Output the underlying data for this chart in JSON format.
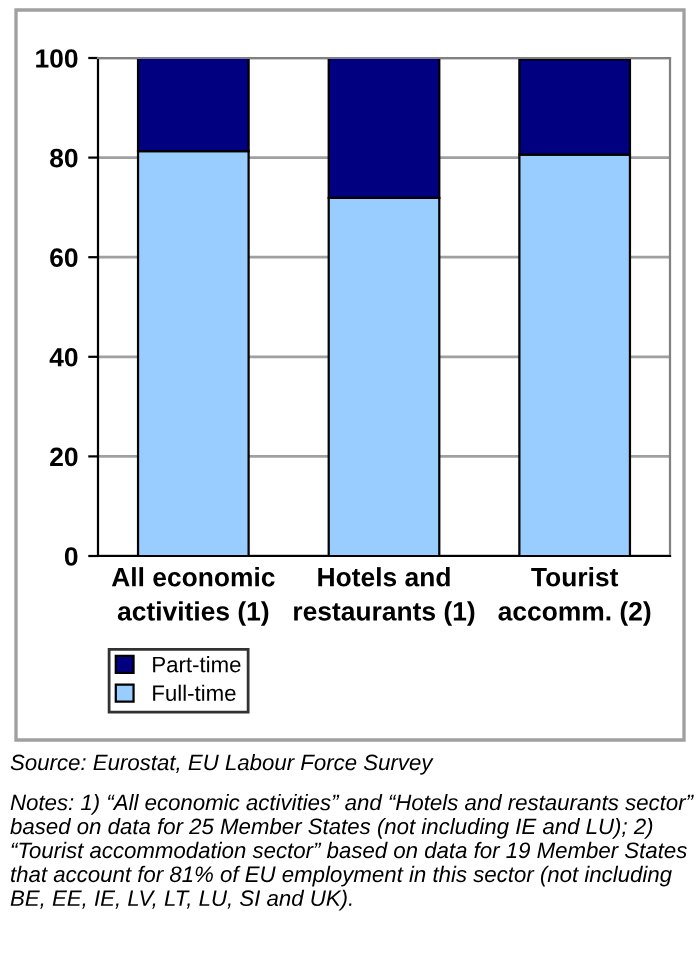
{
  "chart_data": {
    "type": "bar",
    "stacked": true,
    "categories": [
      "All economic\nactivities (1)",
      "Hotels and\nrestaurants (1)",
      "Tourist\naccomm. (2)"
    ],
    "series": [
      {
        "name": "Full-time",
        "color": "#99ccff",
        "values": [
          81.3,
          71.9,
          80.6
        ]
      },
      {
        "name": "Part-time",
        "color": "#000080",
        "values": [
          18.7,
          28.1,
          19.1
        ]
      }
    ],
    "ylim": [
      0,
      100
    ],
    "yticks": [
      0,
      20,
      40,
      60,
      80,
      100
    ],
    "grid": "y",
    "legend": "bottom left",
    "annotations": [
      "Source: Eurostat, EU Labour Force Survey",
      "Notes: 1) “All economic activities” and “Hotels and restaurants sector” based on data for 25 Member States (not including IE and LU); 2) “Tourist accommodation sector” based on data for 19 Member States that account for 81% of EU employment in this sector (not including BE, EE, IE, LV, LT, LU, SI and UK)."
    ]
  }
}
